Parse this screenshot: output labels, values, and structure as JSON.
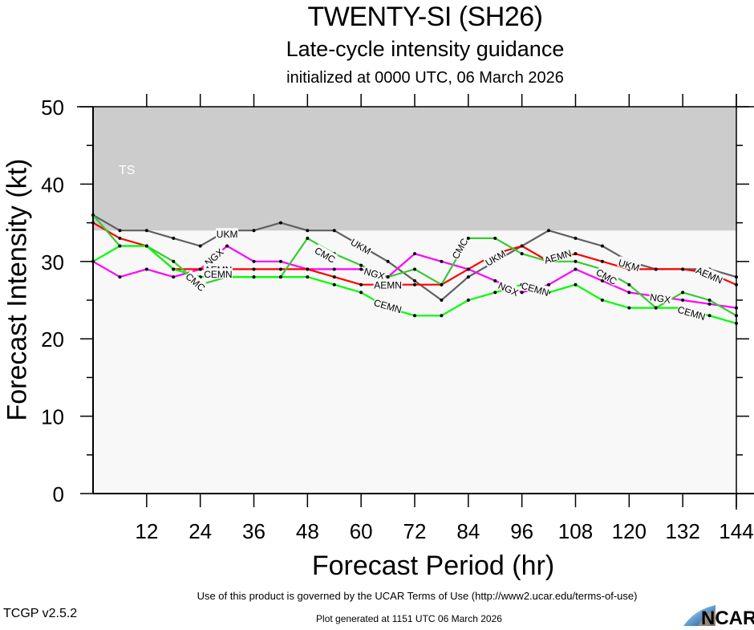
{
  "chart_data": {
    "type": "line",
    "title": "TWENTY-SI (SH26)",
    "subtitle": "Late-cycle intensity guidance",
    "subsubtitle": "initialized at 0000 UTC, 06 March 2026",
    "xlabel": "Forecast Period (hr)",
    "ylabel": "Forecast Intensity (kt)",
    "xlim": [
      0,
      144
    ],
    "ylim": [
      0,
      50
    ],
    "xticks": [
      12,
      24,
      36,
      48,
      60,
      72,
      84,
      96,
      108,
      120,
      132,
      144
    ],
    "yticks": [
      0,
      10,
      20,
      30,
      40,
      50
    ],
    "grid": false,
    "bands": [
      {
        "label": "TS",
        "from": 34,
        "to": 50,
        "color": "#cccccc"
      }
    ],
    "plot_background": "#f8f8f8",
    "x": [
      0,
      6,
      12,
      18,
      24,
      30,
      36,
      42,
      48,
      54,
      60,
      66,
      72,
      78,
      84,
      90,
      96,
      102,
      108,
      114,
      120,
      126,
      132,
      138,
      144
    ],
    "series": [
      {
        "name": "UKM",
        "color": "#606060",
        "values": [
          36,
          34,
          34,
          33,
          32,
          34,
          34,
          35,
          34,
          34,
          32,
          30,
          27.5,
          25,
          28,
          30,
          32,
          34,
          33,
          32,
          30,
          29,
          29,
          29,
          28
        ],
        "label_at": [
          [
            30,
            33.6
          ],
          [
            60,
            32
          ],
          [
            90,
            30.5
          ],
          [
            120,
            29.6
          ]
        ]
      },
      {
        "name": "NGX",
        "color": "#ff00ff",
        "values": [
          30,
          28,
          29,
          28,
          29,
          32,
          30,
          30,
          29,
          29,
          29,
          28,
          31,
          30,
          29,
          27.5,
          26,
          27,
          29,
          27.5,
          26,
          25.5,
          25,
          24.5,
          24
        ],
        "label_at": [
          [
            27,
            30.6
          ],
          [
            63,
            28.5
          ],
          [
            93,
            26.5
          ],
          [
            127,
            25.3
          ]
        ]
      },
      {
        "name": "AEMN",
        "color": "#ff0000",
        "values": [
          35,
          33,
          32,
          29,
          29,
          29,
          29,
          29,
          29,
          28,
          27,
          27,
          27,
          27,
          29,
          31,
          32,
          30,
          31,
          30,
          29,
          29,
          29,
          28.5,
          27
        ],
        "label_at": [
          [
            28,
            29
          ],
          [
            66,
            27
          ],
          [
            104,
            30.7
          ],
          [
            138,
            28.3
          ]
        ]
      },
      {
        "name": "CMC",
        "color": "#33cc33",
        "values": [
          36,
          32,
          32,
          30,
          27,
          28,
          28,
          28,
          33,
          31,
          29.5,
          28,
          29,
          27,
          33,
          33,
          31,
          30,
          30,
          29,
          27,
          24,
          26,
          25,
          23
        ],
        "label_at": [
          [
            23,
            27.4
          ],
          [
            52,
            30.9
          ],
          [
            82,
            31.7
          ],
          [
            115,
            28.1
          ]
        ]
      },
      {
        "name": "CEMN",
        "color": "#00ff00",
        "values": [
          30,
          32,
          32,
          29,
          28,
          28,
          28,
          28,
          28,
          27,
          26,
          24,
          23,
          23,
          25,
          26,
          27,
          26,
          27,
          25,
          24,
          24,
          24,
          23,
          22
        ],
        "label_at": [
          [
            28,
            28.4
          ],
          [
            66,
            24.3
          ],
          [
            99,
            26.5
          ],
          [
            134,
            23.4
          ]
        ]
      }
    ]
  },
  "footer": {
    "terms": "Use of this product is governed by the UCAR Terms of Use (http://www2.ucar.edu/terms-of-use)",
    "version": "TCGP v2.5.2",
    "generated": "Plot generated at 1151 UTC   06 March 2026",
    "logo_text": "NCAR"
  }
}
